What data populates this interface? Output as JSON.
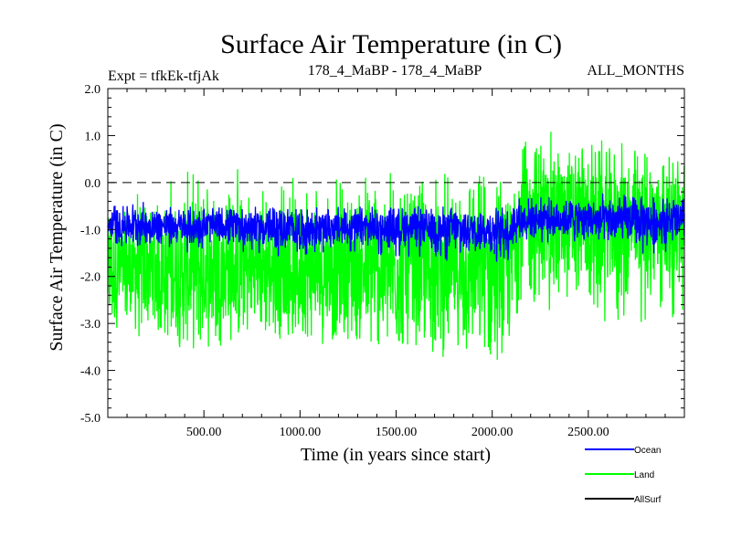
{
  "chart_data": {
    "type": "line",
    "title": "Surface Air Temperature (in C)",
    "subtitle_left": "Expt = tfkEk-tfjAk",
    "subtitle_center": "178_4_MaBP - 178_4_MaBP",
    "subtitle_right": "ALL_MONTHS",
    "xlabel": "Time (in years since start)",
    "ylabel": "Surface Air Temperature (in C)",
    "xlim": [
      0,
      3000
    ],
    "ylim": [
      -5.0,
      2.0
    ],
    "x_ticks": [
      500,
      1000,
      1500,
      2000,
      2500
    ],
    "x_tick_labels": [
      "500.00",
      "1000.00",
      "1500.00",
      "2000.00",
      "2500.00"
    ],
    "y_ticks": [
      2.0,
      1.0,
      0.0,
      -1.0,
      -2.0,
      -3.0,
      -4.0,
      -5.0
    ],
    "y_tick_labels": [
      "2.0",
      "1.0",
      "0.0",
      "-1.0",
      "-2.0",
      "-3.0",
      "-4.0",
      "-5.0"
    ],
    "reference_line": {
      "y": 0.0,
      "style": "dashed"
    },
    "legend_placement": "below-right",
    "series": [
      {
        "name": "Land",
        "color": "#00ff00",
        "x": [
          0,
          200,
          400,
          600,
          800,
          1000,
          1200,
          1400,
          1600,
          1800,
          2000,
          2100,
          2120,
          2200,
          2400,
          2600,
          2800,
          3000
        ],
        "mean": [
          -1.9,
          -1.85,
          -1.9,
          -1.8,
          -1.85,
          -1.9,
          -1.85,
          -1.9,
          -1.85,
          -1.9,
          -1.9,
          -1.9,
          -0.9,
          -0.8,
          -0.85,
          -0.9,
          -0.85,
          -0.9
        ],
        "min": [
          -3.3,
          -3.4,
          -3.6,
          -3.5,
          -3.3,
          -3.4,
          -3.5,
          -3.6,
          -3.8,
          -3.7,
          -3.9,
          -3.5,
          -2.8,
          -2.9,
          -3.0,
          -3.2,
          -3.1,
          -2.9
        ],
        "max": [
          -0.4,
          0.1,
          0.2,
          0.7,
          0.0,
          0.2,
          0.1,
          0.4,
          0.3,
          0.2,
          0.3,
          0.2,
          1.3,
          1.2,
          1.0,
          0.9,
          0.8,
          0.6
        ]
      },
      {
        "name": "Ocean",
        "color": "#0000ff",
        "x": [
          0,
          200,
          400,
          600,
          800,
          1000,
          1200,
          1400,
          1600,
          1800,
          2000,
          2100,
          2120,
          2200,
          2400,
          2600,
          2800,
          3000
        ],
        "mean": [
          -0.9,
          -0.9,
          -0.95,
          -0.9,
          -0.95,
          -1.0,
          -0.95,
          -0.95,
          -0.95,
          -1.0,
          -1.0,
          -1.0,
          -0.8,
          -0.75,
          -0.75,
          -0.8,
          -0.8,
          -0.8
        ],
        "min": [
          -1.4,
          -1.4,
          -1.5,
          -1.4,
          -1.6,
          -1.6,
          -1.5,
          -1.6,
          -1.6,
          -1.7,
          -1.7,
          -1.7,
          -1.3,
          -1.3,
          -1.3,
          -1.4,
          -1.6,
          -1.5
        ],
        "max": [
          -0.4,
          -0.4,
          -0.5,
          -0.5,
          -0.5,
          -0.5,
          -0.5,
          -0.5,
          -0.5,
          -0.5,
          -0.5,
          -0.5,
          -0.3,
          -0.3,
          -0.3,
          -0.2,
          -0.3,
          -0.3
        ]
      },
      {
        "name": "AllSurf",
        "color": "#000000",
        "x": [],
        "mean": []
      }
    ]
  }
}
